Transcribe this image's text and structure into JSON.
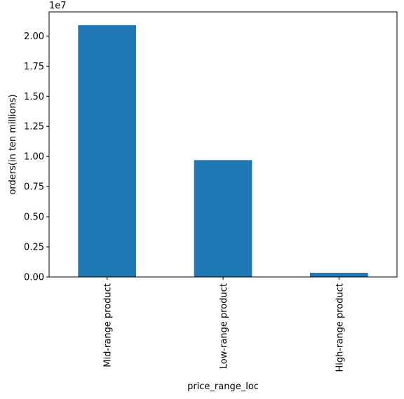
{
  "chart_data": {
    "type": "bar",
    "categories": [
      "Mid-range product",
      "Low-range product",
      "High-range product"
    ],
    "values": [
      20900000,
      9700000,
      350000
    ],
    "xlabel": "price_range_loc",
    "ylabel": "orders(in ten millions)",
    "offset_text": "1e7",
    "yticks": [
      "0.00",
      "0.25",
      "0.50",
      "0.75",
      "1.00",
      "1.25",
      "1.50",
      "1.75",
      "2.00"
    ],
    "ylim": [
      0,
      22000000
    ],
    "grid": false,
    "bar_color": "#1f77b4"
  }
}
